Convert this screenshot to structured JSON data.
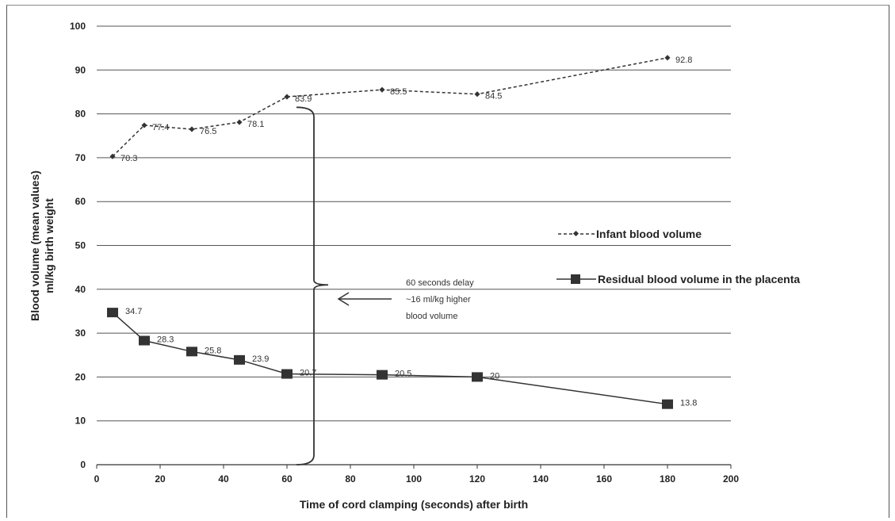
{
  "chart_data": {
    "type": "line",
    "xlabel": "Time of cord clamping (seconds) after birth",
    "ylabel_line1": "Blood volume (mean values)",
    "ylabel_line2": "ml/kg birth weight",
    "xlim": [
      0,
      200
    ],
    "ylim": [
      0,
      100
    ],
    "x_ticks": [
      0,
      20,
      40,
      60,
      80,
      100,
      120,
      140,
      160,
      180,
      200
    ],
    "y_ticks": [
      0,
      10,
      20,
      30,
      40,
      50,
      60,
      70,
      80,
      90,
      100
    ],
    "grid": "horizontal",
    "legend_position": "right",
    "series": [
      {
        "name": "Infant blood volume",
        "style": "dashed",
        "marker": "diamond",
        "color": "#333333",
        "points": [
          {
            "x": 5,
            "y": 70.3,
            "label": "70.3"
          },
          {
            "x": 15,
            "y": 77.4,
            "label": "77.4"
          },
          {
            "x": 30,
            "y": 76.5,
            "label": "76.5"
          },
          {
            "x": 45,
            "y": 78.1,
            "label": "78.1"
          },
          {
            "x": 60,
            "y": 83.9,
            "label": "83.9"
          },
          {
            "x": 90,
            "y": 85.5,
            "label": "85.5"
          },
          {
            "x": 120,
            "y": 84.5,
            "label": "84.5"
          },
          {
            "x": 180,
            "y": 92.8,
            "label": "92.8"
          }
        ]
      },
      {
        "name": "Residual blood volume in the placenta",
        "style": "solid",
        "marker": "square",
        "color": "#333333",
        "points": [
          {
            "x": 5,
            "y": 34.7,
            "label": "34.7"
          },
          {
            "x": 15,
            "y": 28.3,
            "label": "28.3"
          },
          {
            "x": 30,
            "y": 25.8,
            "label": "25.8"
          },
          {
            "x": 45,
            "y": 23.9,
            "label": "23.9"
          },
          {
            "x": 60,
            "y": 20.7,
            "label": "20.7"
          },
          {
            "x": 90,
            "y": 20.5,
            "label": "20.5"
          },
          {
            "x": 120,
            "y": 20,
            "label": "20"
          },
          {
            "x": 180,
            "y": 13.8,
            "label": "13.8"
          }
        ]
      }
    ],
    "annotation": {
      "lines": [
        "60 seconds delay",
        "~16 ml/kg higher",
        "blood volume"
      ]
    }
  }
}
